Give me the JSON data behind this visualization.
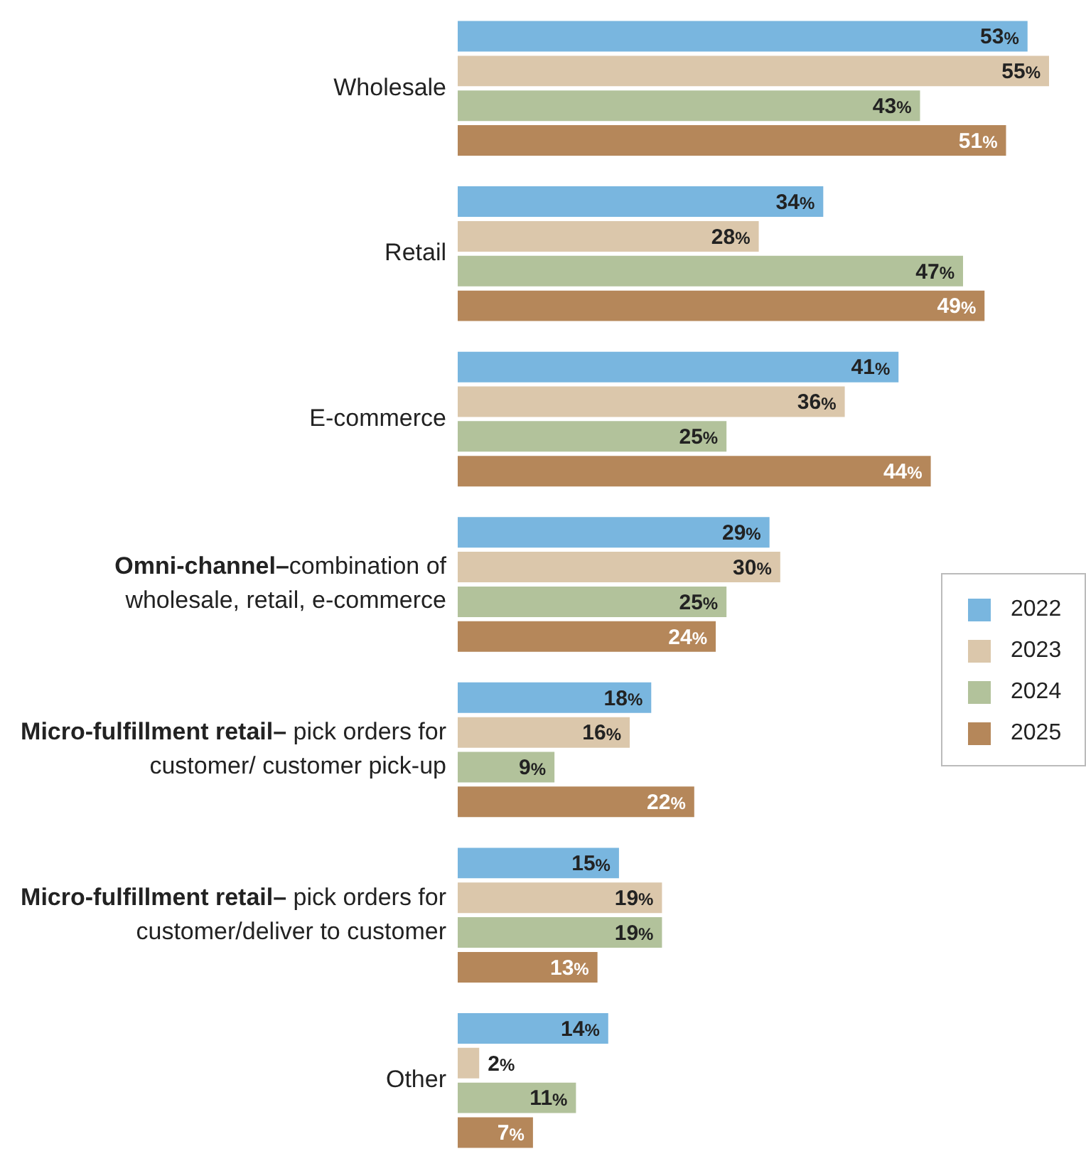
{
  "chart_data": {
    "type": "bar",
    "orientation": "horizontal",
    "categories": [
      "Wholesale",
      "Retail",
      "E-commerce",
      "Omni-channel–combination of wholesale, retail, e-commerce",
      "Micro-fulfillment retail– pick orders for customer/ customer pick-up",
      "Micro-fulfillment retail– pick orders for customer/deliver to customer",
      "Other"
    ],
    "series": [
      {
        "name": "2022",
        "color": "#79b6df",
        "values": [
          53,
          34,
          41,
          29,
          18,
          15,
          14
        ],
        "value_labels": [
          "53%",
          "34%",
          "41%",
          "29%",
          "18%",
          "15%",
          "14%"
        ]
      },
      {
        "name": "2023",
        "color": "#dbc7ab",
        "values": [
          55,
          28,
          36,
          30,
          16,
          19,
          2
        ],
        "value_labels": [
          "55%",
          "28%",
          "36%",
          "30%",
          "16%",
          "19%",
          "2%"
        ]
      },
      {
        "name": "2024",
        "color": "#b2c29b",
        "values": [
          43,
          47,
          25,
          25,
          9,
          19,
          11
        ],
        "value_labels": [
          "43%",
          "47%",
          "25%",
          "25%",
          "9%",
          "19%",
          "11%"
        ]
      },
      {
        "name": "2025",
        "color": "#b5875a",
        "values": [
          51,
          49,
          44,
          24,
          22,
          13,
          7
        ],
        "value_labels": [
          "51%",
          "49%",
          "44%",
          "24%",
          "22%",
          "13%",
          "7%"
        ]
      }
    ],
    "legend": "right"
  }
}
